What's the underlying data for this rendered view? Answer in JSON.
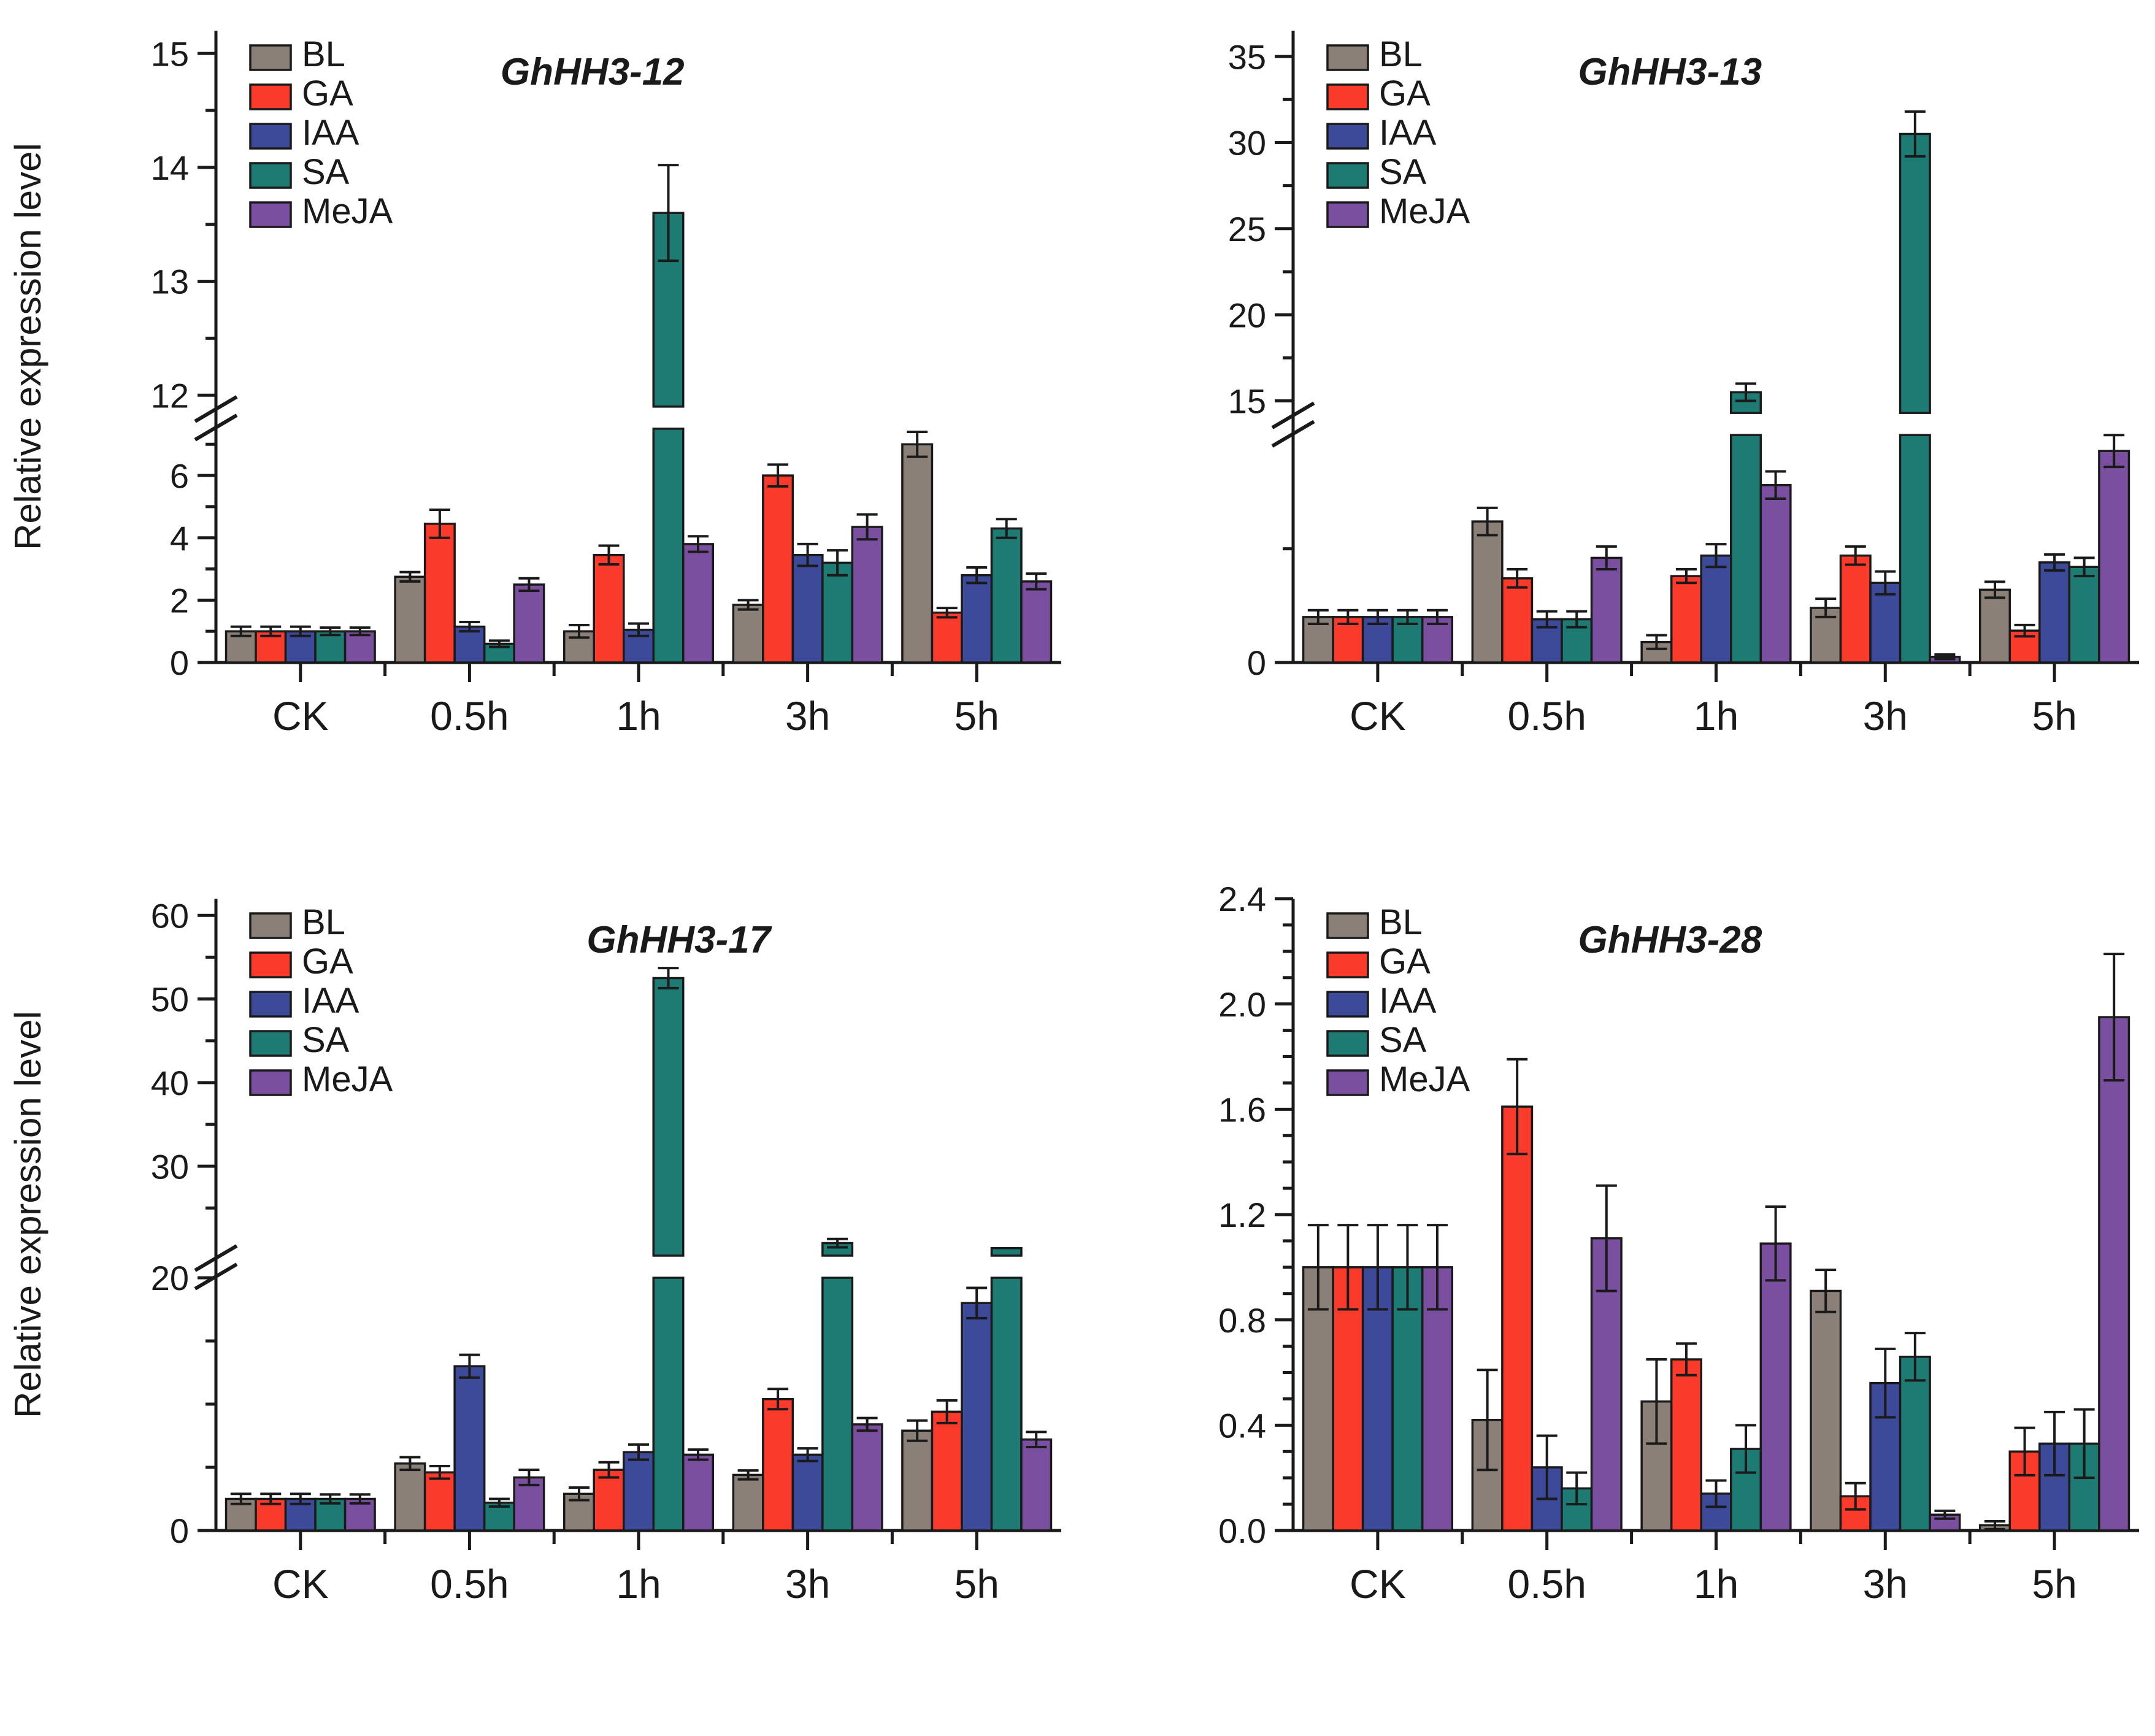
{
  "figure": {
    "ylabel": "Relative expression level",
    "categories": [
      "CK",
      "0.5h",
      "1h",
      "3h",
      "5h"
    ],
    "legend": [
      "BL",
      "GA",
      "IAA",
      "SA",
      "MeJA"
    ],
    "colors": {
      "BL": "#8B8078",
      "GA": "#FA3A2A",
      "IAA": "#3C4A99",
      "SA": "#1E7B74",
      "MeJA": "#7A4FA0",
      "outline": "#1A1A1A",
      "background": "#FFFFFF"
    }
  },
  "chart_data": [
    {
      "type": "bar",
      "title": "GhHH3-12",
      "xlabel": "",
      "ylabel": "Relative expression level",
      "categories": [
        "CK",
        "0.5h",
        "1h",
        "3h",
        "5h"
      ],
      "legend_position": "top-left",
      "grid": false,
      "axis": {
        "broken": true,
        "decimals": 0,
        "lower": {
          "min": 0,
          "max": 7.5,
          "labeled_ticks": [
            0,
            2,
            4,
            6
          ],
          "unlabeled_ticks": [
            1,
            3,
            5,
            7
          ]
        },
        "upper": {
          "min": 11.9,
          "max": 15.2,
          "labeled_ticks": [
            12,
            13,
            14,
            15
          ],
          "unlabeled_ticks": [
            12.5,
            13.5,
            14.5
          ]
        }
      },
      "series": [
        {
          "name": "BL",
          "values": [
            1.0,
            2.75,
            1.0,
            1.85,
            7.0
          ],
          "errors": [
            0.15,
            0.15,
            0.2,
            0.15,
            0.4
          ]
        },
        {
          "name": "GA",
          "values": [
            1.0,
            4.45,
            3.45,
            6.0,
            1.6
          ],
          "errors": [
            0.15,
            0.45,
            0.3,
            0.35,
            0.15
          ]
        },
        {
          "name": "IAA",
          "values": [
            1.0,
            1.15,
            1.05,
            3.45,
            2.8
          ],
          "errors": [
            0.15,
            0.15,
            0.2,
            0.35,
            0.25
          ]
        },
        {
          "name": "SA",
          "values": [
            1.0,
            0.6,
            13.6,
            3.2,
            4.3
          ],
          "errors": [
            0.12,
            0.1,
            0.42,
            0.4,
            0.3
          ]
        },
        {
          "name": "MeJA",
          "values": [
            1.0,
            2.5,
            3.8,
            4.35,
            2.6
          ],
          "errors": [
            0.12,
            0.2,
            0.25,
            0.4,
            0.25
          ]
        }
      ]
    },
    {
      "type": "bar",
      "title": "GhHH3-13",
      "xlabel": "",
      "ylabel": "",
      "categories": [
        "CK",
        "0.5h",
        "1h",
        "3h",
        "5h"
      ],
      "legend_position": "top-left",
      "grid": false,
      "axis": {
        "broken": true,
        "decimals": 0,
        "lower": {
          "min": 0,
          "max": 10,
          "labeled_ticks": [
            0
          ],
          "unlabeled_ticks": [
            5
          ]
        },
        "upper": {
          "min": 14.3,
          "max": 36.5,
          "labeled_ticks": [
            15,
            20,
            25,
            30,
            35
          ],
          "unlabeled_ticks": [
            17.5,
            22.5,
            27.5,
            32.5
          ]
        }
      },
      "series": [
        {
          "name": "BL",
          "values": [
            2.0,
            6.2,
            0.9,
            2.4,
            3.2
          ],
          "errors": [
            0.3,
            0.6,
            0.3,
            0.4,
            0.35
          ]
        },
        {
          "name": "GA",
          "values": [
            2.0,
            3.7,
            3.8,
            4.7,
            1.4
          ],
          "errors": [
            0.3,
            0.4,
            0.3,
            0.4,
            0.25
          ]
        },
        {
          "name": "IAA",
          "values": [
            2.0,
            1.9,
            4.7,
            3.5,
            4.4
          ],
          "errors": [
            0.3,
            0.35,
            0.5,
            0.5,
            0.35
          ]
        },
        {
          "name": "SA",
          "values": [
            2.0,
            1.9,
            15.5,
            30.5,
            4.2
          ],
          "errors": [
            0.3,
            0.35,
            0.5,
            1.3,
            0.4
          ]
        },
        {
          "name": "MeJA",
          "values": [
            2.0,
            4.6,
            7.8,
            0.25,
            9.3
          ],
          "errors": [
            0.3,
            0.5,
            0.6,
            0.1,
            0.7
          ]
        }
      ]
    },
    {
      "type": "bar",
      "title": "GhHH3-17",
      "xlabel": "",
      "ylabel": "Relative expression level",
      "categories": [
        "CK",
        "0.5h",
        "1h",
        "3h",
        "5h"
      ],
      "legend_position": "top-left",
      "grid": false,
      "axis": {
        "broken": true,
        "decimals": 0,
        "lower": {
          "min": 0,
          "max": 20,
          "labeled_ticks": [
            0
          ],
          "unlabeled_ticks": [
            5,
            10,
            15
          ]
        },
        "upper": {
          "min": 19.3,
          "max": 62,
          "labeled_ticks": [
            20,
            30,
            40,
            50,
            60
          ],
          "unlabeled_ticks": [
            25,
            35,
            45,
            55
          ]
        }
      },
      "series": [
        {
          "name": "BL",
          "values": [
            2.5,
            5.3,
            2.9,
            4.4,
            7.9
          ],
          "errors": [
            0.4,
            0.5,
            0.5,
            0.35,
            0.8
          ]
        },
        {
          "name": "GA",
          "values": [
            2.5,
            4.6,
            4.8,
            10.4,
            9.4
          ],
          "errors": [
            0.4,
            0.5,
            0.6,
            0.8,
            0.9
          ]
        },
        {
          "name": "IAA",
          "values": [
            2.5,
            13.0,
            6.2,
            6.0,
            18.0
          ],
          "errors": [
            0.4,
            0.9,
            0.6,
            0.5,
            1.2
          ]
        },
        {
          "name": "SA",
          "values": [
            2.5,
            2.2,
            52.5,
            20.8,
            20.2
          ],
          "errors": [
            0.35,
            0.3,
            1.2,
            0.5,
            0
          ]
        },
        {
          "name": "MeJA",
          "values": [
            2.5,
            4.2,
            6.0,
            8.4,
            7.2
          ],
          "errors": [
            0.35,
            0.6,
            0.4,
            0.5,
            0.6
          ]
        }
      ]
    },
    {
      "type": "bar",
      "title": "GhHH3-28",
      "xlabel": "",
      "ylabel": "",
      "categories": [
        "CK",
        "0.5h",
        "1h",
        "3h",
        "5h"
      ],
      "legend_position": "top-left",
      "grid": false,
      "axis": {
        "broken": false,
        "decimals": 1,
        "min": 0,
        "max": 2.4,
        "labeled_ticks": [
          0.0,
          0.4,
          0.8,
          1.2,
          1.6,
          2.0,
          2.4
        ],
        "minor_step": 0.1
      },
      "series": [
        {
          "name": "BL",
          "values": [
            1.0,
            0.42,
            0.49,
            0.91,
            0.02
          ],
          "errors": [
            0.16,
            0.19,
            0.16,
            0.08,
            0.015
          ]
        },
        {
          "name": "GA",
          "values": [
            1.0,
            1.61,
            0.65,
            0.13,
            0.3
          ],
          "errors": [
            0.16,
            0.18,
            0.06,
            0.05,
            0.09
          ]
        },
        {
          "name": "IAA",
          "values": [
            1.0,
            0.24,
            0.14,
            0.56,
            0.33
          ],
          "errors": [
            0.16,
            0.12,
            0.05,
            0.13,
            0.12
          ]
        },
        {
          "name": "SA",
          "values": [
            1.0,
            0.16,
            0.31,
            0.66,
            0.33
          ],
          "errors": [
            0.16,
            0.06,
            0.09,
            0.09,
            0.13
          ]
        },
        {
          "name": "MeJA",
          "values": [
            1.0,
            1.11,
            1.09,
            0.06,
            1.95
          ],
          "errors": [
            0.16,
            0.2,
            0.14,
            0.015,
            0.24
          ]
        }
      ]
    }
  ]
}
